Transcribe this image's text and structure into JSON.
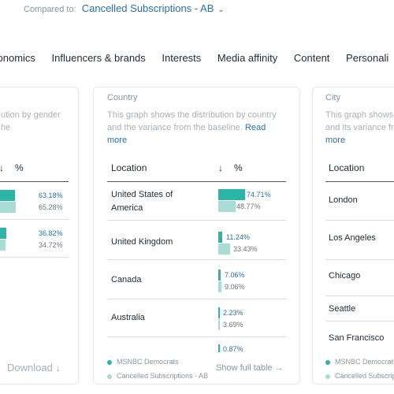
{
  "header": {
    "compared_to_label": "Compared to:",
    "compared_to_value": "Cancelled Subscriptions - AB",
    "chevron": "⌄"
  },
  "tabs": [
    "conomics",
    "Influencers & brands",
    "Interests",
    "Media affinity",
    "Content",
    "Personali"
  ],
  "left_card": {
    "desc_lines": [
      "ution by gender",
      "he"
    ],
    "sort_arrow": "↓",
    "col_pct": "%",
    "rows": [
      {
        "a_pct": "63.18%",
        "b_pct": "65.28%",
        "a_val": 63.18,
        "b_val": 65.28
      },
      {
        "a_pct": "36.82%",
        "b_pct": "34.72%",
        "a_val": 36.82,
        "b_val": 34.72
      }
    ],
    "download": "Download",
    "download_icon": "↓"
  },
  "country_card": {
    "title": "Country",
    "desc_line1": "This graph shows the distribution by country",
    "desc_line2": "and the variance from the baseline.",
    "read_more_1": "Read",
    "read_more_2": "more",
    "col_location": "Location",
    "sort_arrow": "↓",
    "col_pct": "%",
    "rows": [
      {
        "label": "United States of America",
        "a_pct": "74.71%",
        "b_pct": "48.77%",
        "a_val": 74.71,
        "b_val": 48.77
      },
      {
        "label": "United Kingdom",
        "a_pct": "11.24%",
        "b_pct": "33.43%",
        "a_val": 11.24,
        "b_val": 33.43
      },
      {
        "label": "Canada",
        "a_pct": "7.06%",
        "b_pct": "9.06%",
        "a_val": 7.06,
        "b_val": 9.06
      },
      {
        "label": "Australia",
        "a_pct": "2.23%",
        "b_pct": "3.69%",
        "a_val": 2.23,
        "b_val": 3.69
      },
      {
        "label": "",
        "a_pct": "0.87%",
        "b_pct": "",
        "a_val": 0.87,
        "b_val": 0
      }
    ],
    "legend_a": "MSNBC Democrats",
    "legend_b": "Cancelled Subscriptions - AB",
    "show_full_table": "Show full table",
    "show_full_icon": "→"
  },
  "city_card": {
    "title": "City",
    "desc_line1": "This graph shows",
    "desc_line2": "and its variance fr",
    "read_more": "more",
    "col_location": "Location",
    "rows": [
      "London",
      "Los Angeles",
      "Chicago",
      "Seattle",
      "San Francisco"
    ],
    "legend_a": "MSNBC Democrats",
    "legend_b": "Cancelled Subscriptions"
  },
  "colors": {
    "series_a": "#2bb5a6",
    "series_b": "#a8dcd5",
    "link": "#2a6fad"
  }
}
